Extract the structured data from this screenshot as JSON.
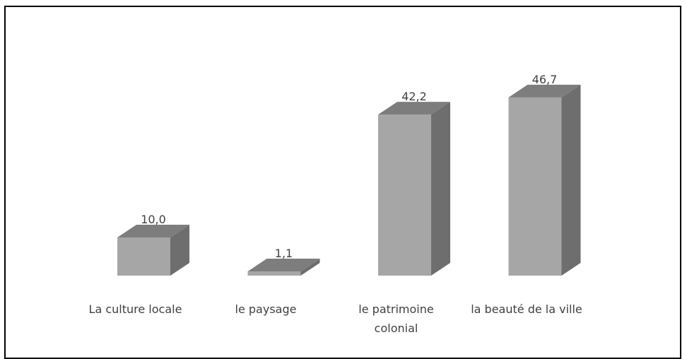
{
  "chart_data": {
    "type": "bar3d",
    "categories": [
      "La culture locale",
      "le paysage",
      "le patrimoine colonial",
      "la beauté de la ville"
    ],
    "values": [
      10.0,
      1.1,
      42.2,
      46.7
    ],
    "value_labels": [
      "10,0",
      "1,1",
      "42,2",
      "46,7"
    ],
    "color": "#a6a6a6"
  }
}
